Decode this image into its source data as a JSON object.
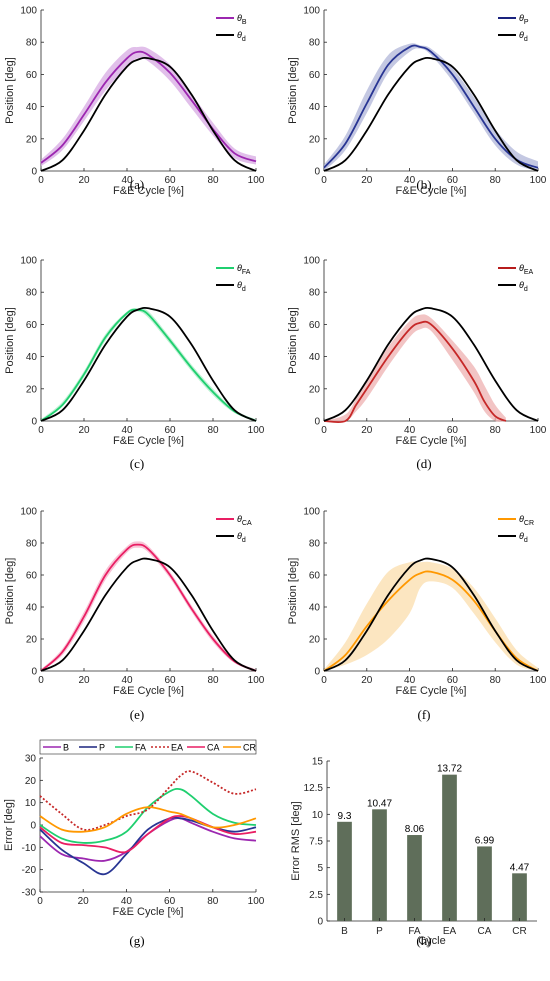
{
  "chart_data": [
    {
      "type": "line",
      "caption": "(a)",
      "xlabel": "F&E Cycle [%]",
      "ylabel": "Position [deg]",
      "xlim": [
        0,
        100
      ],
      "ylim": [
        0,
        100
      ],
      "xticks": [
        "0",
        "20",
        "40",
        "60",
        "80",
        "100"
      ],
      "yticks": [
        "0",
        "20",
        "40",
        "60",
        "80",
        "100"
      ],
      "legend": [
        {
          "sym": "θ",
          "sub": "B",
          "color": "#9c27b0"
        },
        {
          "sym": "θ",
          "sub": "d",
          "color": "#000000"
        }
      ],
      "x": [
        0,
        10,
        20,
        30,
        40,
        45,
        50,
        60,
        70,
        80,
        90,
        100
      ],
      "series": [
        {
          "key": "B",
          "color": "#9c27b0",
          "band_color": "#d7a9e3",
          "values": [
            5,
            16,
            35,
            55,
            70,
            74,
            72,
            61,
            44,
            26,
            11,
            6
          ],
          "upper": [
            7,
            20,
            40,
            61,
            75,
            77,
            76,
            66,
            48,
            30,
            14,
            9
          ],
          "lower": [
            3,
            13,
            31,
            50,
            65,
            70,
            68,
            56,
            39,
            22,
            8,
            4
          ]
        },
        {
          "key": "d",
          "color": "#000000",
          "values": [
            0,
            6.7,
            25.1,
            47.5,
            64.8,
            69.1,
            70,
            64.8,
            47.5,
            25.1,
            6.7,
            0
          ]
        }
      ]
    },
    {
      "type": "line",
      "caption": "(b)",
      "xlabel": "F&E Cycle [%]",
      "ylabel": "Position [deg]",
      "xlim": [
        0,
        100
      ],
      "ylim": [
        0,
        100
      ],
      "xticks": [
        "0",
        "20",
        "40",
        "60",
        "80",
        "100"
      ],
      "yticks": [
        "0",
        "20",
        "40",
        "60",
        "80",
        "100"
      ],
      "legend": [
        {
          "sym": "θ",
          "sub": "P",
          "color": "#1a237e"
        },
        {
          "sym": "θ",
          "sub": "d",
          "color": "#000000"
        }
      ],
      "x": [
        0,
        10,
        20,
        30,
        40,
        45,
        50,
        60,
        70,
        80,
        90,
        100
      ],
      "series": [
        {
          "key": "P",
          "color": "#283593",
          "band_color": "#b0b6d8",
          "values": [
            2,
            17,
            42,
            66,
            77,
            77,
            74,
            60,
            40,
            20,
            7,
            2
          ],
          "upper": [
            4,
            22,
            50,
            72,
            79,
            78,
            76,
            64,
            46,
            26,
            12,
            6
          ],
          "lower": [
            0,
            13,
            36,
            61,
            74,
            76,
            72,
            56,
            36,
            16,
            4,
            0
          ]
        },
        {
          "key": "d",
          "color": "#000000",
          "values": [
            0,
            6.7,
            25.1,
            47.5,
            64.8,
            69.1,
            70,
            64.8,
            47.5,
            25.1,
            6.7,
            0
          ]
        }
      ]
    },
    {
      "type": "line",
      "caption": "(c)",
      "xlabel": "F&E Cycle [%]",
      "ylabel": "Position [deg]",
      "xlim": [
        0,
        100
      ],
      "ylim": [
        0,
        100
      ],
      "xticks": [
        "0",
        "20",
        "40",
        "60",
        "80",
        "100"
      ],
      "yticks": [
        "0",
        "20",
        "40",
        "60",
        "80",
        "100"
      ],
      "legend": [
        {
          "sym": "θ",
          "sub": "FA",
          "color": "#1fcf6f"
        },
        {
          "sym": "θ",
          "sub": "d",
          "color": "#000000"
        }
      ],
      "x": [
        0,
        10,
        20,
        30,
        40,
        45,
        50,
        60,
        70,
        80,
        90,
        100
      ],
      "series": [
        {
          "key": "FA",
          "color": "#1fcf6f",
          "band_color": "#a8ecc6",
          "values": [
            0,
            10,
            29,
            52,
            67,
            69,
            66,
            50,
            33,
            18,
            6,
            0
          ],
          "upper": [
            1,
            12,
            31,
            54,
            68,
            70,
            68,
            52,
            35,
            20,
            7,
            1
          ],
          "lower": [
            0,
            9,
            27,
            50,
            66,
            68,
            64,
            48,
            31,
            16,
            5,
            0
          ]
        },
        {
          "key": "d",
          "color": "#000000",
          "values": [
            0,
            6.7,
            25.1,
            47.5,
            64.8,
            69.1,
            70,
            64.8,
            47.5,
            25.1,
            6.7,
            0
          ]
        }
      ]
    },
    {
      "type": "line",
      "caption": "(d)",
      "xlabel": "F&E Cycle [%]",
      "ylabel": "Position [deg]",
      "xlim": [
        0,
        100
      ],
      "ylim": [
        0,
        100
      ],
      "xticks": [
        "0",
        "20",
        "40",
        "60",
        "80",
        "100"
      ],
      "yticks": [
        "0",
        "20",
        "40",
        "60",
        "80",
        "100"
      ],
      "legend": [
        {
          "sym": "θ",
          "sub": "EA",
          "color": "#b71c1c"
        },
        {
          "sym": "θ",
          "sub": "d",
          "color": "#000000"
        }
      ],
      "x": [
        0,
        10,
        15,
        20,
        30,
        40,
        45,
        50,
        60,
        70,
        75,
        80,
        85
      ],
      "series": [
        {
          "key": "EA",
          "color": "#c62828",
          "band_color": "#eeb0b0",
          "values": [
            0,
            0,
            10,
            20,
            40,
            57,
            61,
            60,
            45,
            25,
            12,
            3,
            0
          ],
          "upper": [
            0,
            4,
            14,
            26,
            46,
            62,
            66,
            64,
            50,
            34,
            22,
            10,
            2
          ],
          "lower": [
            0,
            0,
            6,
            14,
            34,
            52,
            57,
            56,
            38,
            18,
            6,
            0,
            0
          ]
        },
        {
          "key": "d",
          "color": "#000000",
          "x": [
            0,
            10,
            20,
            30,
            40,
            45,
            50,
            60,
            70,
            80,
            90,
            100
          ],
          "values": [
            0,
            6.7,
            25.1,
            47.5,
            64.8,
            69.1,
            70,
            64.8,
            47.5,
            25.1,
            6.7,
            0
          ]
        }
      ]
    },
    {
      "type": "line",
      "caption": "(e)",
      "xlabel": "F&E Cycle [%]",
      "ylabel": "Position [deg]",
      "xlim": [
        0,
        100
      ],
      "ylim": [
        0,
        100
      ],
      "xticks": [
        "0",
        "20",
        "40",
        "60",
        "80",
        "100"
      ],
      "yticks": [
        "0",
        "20",
        "40",
        "60",
        "80",
        "100"
      ],
      "legend": [
        {
          "sym": "θ",
          "sub": "CA",
          "color": "#e91e63"
        },
        {
          "sym": "θ",
          "sub": "d",
          "color": "#000000"
        }
      ],
      "x": [
        0,
        10,
        20,
        30,
        40,
        45,
        50,
        60,
        70,
        80,
        90,
        100
      ],
      "series": [
        {
          "key": "CA",
          "color": "#e91e63",
          "band_color": "#f5b0c8",
          "values": [
            0,
            12,
            34,
            60,
            76,
            79,
            76,
            60,
            39,
            20,
            6,
            0
          ],
          "upper": [
            1,
            14,
            37,
            63,
            78,
            81,
            78,
            62,
            41,
            22,
            7,
            1
          ],
          "lower": [
            0,
            10,
            31,
            57,
            74,
            77,
            74,
            58,
            37,
            18,
            5,
            0
          ]
        },
        {
          "key": "d",
          "color": "#000000",
          "values": [
            0,
            6.7,
            25.1,
            47.5,
            64.8,
            69.1,
            70,
            64.8,
            47.5,
            25.1,
            6.7,
            0
          ]
        }
      ]
    },
    {
      "type": "line",
      "caption": "(f)",
      "xlabel": "F&E Cycle [%]",
      "ylabel": "Position [deg]",
      "xlim": [
        0,
        100
      ],
      "ylim": [
        0,
        100
      ],
      "xticks": [
        "0",
        "20",
        "40",
        "60",
        "80",
        "100"
      ],
      "yticks": [
        "0",
        "20",
        "40",
        "60",
        "80",
        "100"
      ],
      "legend": [
        {
          "sym": "θ",
          "sub": "CR",
          "color": "#ff9800"
        },
        {
          "sym": "θ",
          "sub": "d",
          "color": "#000000"
        }
      ],
      "x": [
        0,
        10,
        20,
        30,
        40,
        45,
        50,
        60,
        70,
        80,
        90,
        100
      ],
      "series": [
        {
          "key": "CR",
          "color": "#ff9800",
          "band_color": "#fbdeac",
          "values": [
            0,
            10,
            28,
            44,
            57,
            61,
            62,
            57,
            44,
            25,
            8,
            0
          ],
          "upper": [
            1,
            18,
            42,
            62,
            68,
            68,
            68,
            64,
            52,
            33,
            13,
            2
          ],
          "lower": [
            0,
            4,
            10,
            20,
            36,
            52,
            56,
            52,
            36,
            18,
            4,
            0
          ]
        },
        {
          "key": "d",
          "color": "#000000",
          "values": [
            0,
            6.7,
            25.1,
            47.5,
            64.8,
            69.1,
            70,
            64.8,
            47.5,
            25.1,
            6.7,
            0
          ]
        }
      ]
    },
    {
      "type": "line",
      "caption": "(g)",
      "xlabel": "F&E Cycle [%]",
      "ylabel": "Error [deg]",
      "xlim": [
        0,
        100
      ],
      "ylim": [
        -30,
        30
      ],
      "xticks": [
        "0",
        "20",
        "40",
        "60",
        "80",
        "100"
      ],
      "yticks": [
        "-30",
        "-20",
        "-10",
        "0",
        "10",
        "20",
        "30"
      ],
      "legend": [
        {
          "label": "B",
          "color": "#9c27b0"
        },
        {
          "label": "P",
          "color": "#1a237e"
        },
        {
          "label": "FA",
          "color": "#1fcf6f"
        },
        {
          "label": "EA",
          "color": "#c62828",
          "dotted": true
        },
        {
          "label": "CA",
          "color": "#e91e63"
        },
        {
          "label": "CR",
          "color": "#ff9800"
        }
      ],
      "x": [
        0,
        10,
        20,
        30,
        40,
        50,
        60,
        65,
        70,
        80,
        90,
        100
      ],
      "series": [
        {
          "key": "B",
          "color": "#9c27b0",
          "values": [
            -5,
            -13,
            -15,
            -16,
            -12,
            -4,
            2,
            3,
            1,
            -3,
            -6,
            -7
          ]
        },
        {
          "key": "P",
          "color": "#283593",
          "values": [
            -2,
            -11,
            -17,
            -22,
            -13,
            -2,
            3,
            3,
            2,
            -1,
            -3,
            -1
          ]
        },
        {
          "key": "FA",
          "color": "#1fcf6f",
          "values": [
            0,
            -6,
            -8,
            -7,
            -3,
            8,
            15,
            16,
            13,
            5,
            1,
            0
          ]
        },
        {
          "key": "EA",
          "color": "#c62828",
          "dotted": true,
          "values": [
            13,
            5,
            -2,
            0,
            4,
            7,
            17,
            22,
            24,
            19,
            14,
            16
          ]
        },
        {
          "key": "CA",
          "color": "#e91e63",
          "values": [
            -1,
            -8,
            -9,
            -10,
            -12,
            -4,
            3,
            4,
            3,
            -1,
            -4,
            -3
          ]
        },
        {
          "key": "CR",
          "color": "#ff9800",
          "values": [
            4,
            -2,
            -3,
            -1,
            5,
            8,
            6,
            5,
            3,
            -1,
            0,
            3
          ]
        }
      ]
    },
    {
      "type": "bar",
      "caption": "(h)",
      "xlabel": "Cycle",
      "ylabel": "Error RMS [deg]",
      "ylim": [
        0,
        15
      ],
      "yticks": [
        "0",
        "2.5",
        "5",
        "7.5",
        "10",
        "12.5",
        "15"
      ],
      "categories": [
        "B",
        "P",
        "FA",
        "EA",
        "CA",
        "CR"
      ],
      "values": [
        9.3,
        10.47,
        8.06,
        13.72,
        6.99,
        4.47
      ],
      "labels": [
        "9.3",
        "10.47",
        "8.06",
        "13.72",
        "6.99",
        "4.47"
      ],
      "bar_color": "#5f6e5a"
    }
  ]
}
